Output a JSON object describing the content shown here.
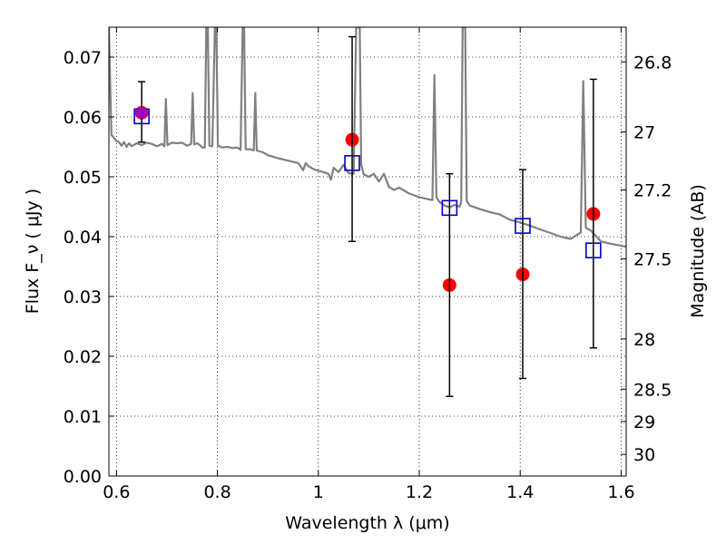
{
  "chart_data": {
    "type": "scatter",
    "xlabel": "Wavelength  λ (μm)",
    "ylabel": "Flux  F_ν  ( μJy )",
    "y2label": "Magnitude (AB)",
    "xlim": [
      0.585,
      1.61
    ],
    "ylim": [
      0.0,
      0.075
    ],
    "grid": true,
    "x_ticks": [
      0.6,
      0.8,
      1.0,
      1.2,
      1.4,
      1.6
    ],
    "x_tick_labels": [
      "0.6",
      "0.8",
      "1",
      "1.2",
      "1.4",
      "1.6"
    ],
    "y_ticks": [
      0.0,
      0.01,
      0.02,
      0.03,
      0.04,
      0.05,
      0.06,
      0.07
    ],
    "y_tick_labels": [
      "0.00",
      "0.01",
      "0.02",
      "0.03",
      "0.04",
      "0.05",
      "0.06",
      "0.07"
    ],
    "y2_ticks": [
      {
        "label": "26.8",
        "flux": 0.0692
      },
      {
        "label": "27",
        "flux": 0.0575
      },
      {
        "label": "27.2",
        "flux": 0.0478
      },
      {
        "label": "27.5",
        "flux": 0.0363
      },
      {
        "label": "28",
        "flux": 0.0229
      },
      {
        "label": "28.5",
        "flux": 0.0145
      },
      {
        "label": "29",
        "flux": 0.0091
      },
      {
        "label": "30",
        "flux": 0.0036
      }
    ],
    "series": [
      {
        "kind": "line",
        "color": "#808080",
        "points": [
          [
            0.585,
            0.075
          ],
          [
            0.59,
            0.057
          ],
          [
            0.595,
            0.0565
          ],
          [
            0.6,
            0.056
          ],
          [
            0.605,
            0.0558
          ],
          [
            0.61,
            0.0552
          ],
          [
            0.615,
            0.0558
          ],
          [
            0.62,
            0.055
          ],
          [
            0.625,
            0.0556
          ],
          [
            0.63,
            0.0551
          ],
          [
            0.64,
            0.0556
          ],
          [
            0.65,
            0.0553
          ],
          [
            0.66,
            0.0557
          ],
          [
            0.67,
            0.0555
          ],
          [
            0.68,
            0.0551
          ],
          [
            0.69,
            0.0555
          ],
          [
            0.695,
            0.0551
          ],
          [
            0.698,
            0.063
          ],
          [
            0.701,
            0.0553
          ],
          [
            0.71,
            0.0557
          ],
          [
            0.72,
            0.0556
          ],
          [
            0.73,
            0.0557
          ],
          [
            0.74,
            0.0552
          ],
          [
            0.748,
            0.0555
          ],
          [
            0.751,
            0.064
          ],
          [
            0.754,
            0.0554
          ],
          [
            0.76,
            0.0556
          ],
          [
            0.765,
            0.0553
          ],
          [
            0.77,
            0.0549
          ],
          [
            0.775,
            0.0549
          ],
          [
            0.778,
            0.075
          ],
          [
            0.781,
            0.075
          ],
          [
            0.784,
            0.0552
          ],
          [
            0.79,
            0.0551
          ],
          [
            0.795,
            0.075
          ],
          [
            0.798,
            0.075
          ],
          [
            0.801,
            0.0552
          ],
          [
            0.81,
            0.0549
          ],
          [
            0.82,
            0.055
          ],
          [
            0.83,
            0.0548
          ],
          [
            0.84,
            0.0549
          ],
          [
            0.846,
            0.0545
          ],
          [
            0.85,
            0.075
          ],
          [
            0.853,
            0.075
          ],
          [
            0.856,
            0.0546
          ],
          [
            0.865,
            0.0546
          ],
          [
            0.872,
            0.0544
          ],
          [
            0.875,
            0.064
          ],
          [
            0.878,
            0.0544
          ],
          [
            0.89,
            0.0541
          ],
          [
            0.9,
            0.0536
          ],
          [
            0.92,
            0.0531
          ],
          [
            0.94,
            0.0527
          ],
          [
            0.96,
            0.0523
          ],
          [
            0.97,
            0.0511
          ],
          [
            0.975,
            0.0523
          ],
          [
            0.98,
            0.0518
          ],
          [
            0.99,
            0.0513
          ],
          [
            1.0,
            0.051
          ],
          [
            1.01,
            0.0508
          ],
          [
            1.02,
            0.0505
          ],
          [
            1.025,
            0.0495
          ],
          [
            1.03,
            0.0515
          ],
          [
            1.04,
            0.0508
          ],
          [
            1.05,
            0.052
          ],
          [
            1.06,
            0.0506
          ],
          [
            1.07,
            0.0505
          ],
          [
            1.075,
            0.075
          ],
          [
            1.082,
            0.075
          ],
          [
            1.085,
            0.052
          ],
          [
            1.09,
            0.0504
          ],
          [
            1.1,
            0.05
          ],
          [
            1.11,
            0.0505
          ],
          [
            1.12,
            0.0492
          ],
          [
            1.13,
            0.0505
          ],
          [
            1.14,
            0.0483
          ],
          [
            1.15,
            0.0478
          ],
          [
            1.16,
            0.0482
          ],
          [
            1.18,
            0.0472
          ],
          [
            1.2,
            0.0466
          ],
          [
            1.22,
            0.0462
          ],
          [
            1.226,
            0.0461
          ],
          [
            1.23,
            0.067
          ],
          [
            1.234,
            0.0466
          ],
          [
            1.24,
            0.0458
          ],
          [
            1.25,
            0.0452
          ],
          [
            1.26,
            0.0449
          ],
          [
            1.27,
            0.0453
          ],
          [
            1.28,
            0.045
          ],
          [
            1.283,
            0.0458
          ],
          [
            1.286,
            0.075
          ],
          [
            1.291,
            0.075
          ],
          [
            1.294,
            0.046
          ],
          [
            1.3,
            0.0452
          ],
          [
            1.32,
            0.0446
          ],
          [
            1.34,
            0.0441
          ],
          [
            1.36,
            0.0437
          ],
          [
            1.38,
            0.0428
          ],
          [
            1.4,
            0.0424
          ],
          [
            1.42,
            0.0418
          ],
          [
            1.44,
            0.0412
          ],
          [
            1.46,
            0.0406
          ],
          [
            1.48,
            0.04
          ],
          [
            1.5,
            0.0396
          ],
          [
            1.52,
            0.0407
          ],
          [
            1.525,
            0.066
          ],
          [
            1.53,
            0.0415
          ],
          [
            1.54,
            0.041
          ],
          [
            1.55,
            0.0401
          ],
          [
            1.56,
            0.0392
          ],
          [
            1.58,
            0.0388
          ],
          [
            1.6,
            0.0385
          ],
          [
            1.61,
            0.0383
          ]
        ]
      },
      {
        "kind": "points",
        "marker": "circle",
        "color": "#ff0000",
        "points": [
          {
            "x": 0.65,
            "y": 0.0607
          },
          {
            "x": 1.067,
            "y": 0.0562
          },
          {
            "x": 1.26,
            "y": 0.0319
          },
          {
            "x": 1.405,
            "y": 0.0337
          },
          {
            "x": 1.545,
            "y": 0.0438
          }
        ]
      },
      {
        "kind": "points",
        "marker": "open-square",
        "color": "#0000cc",
        "points": [
          {
            "x": 0.65,
            "y": 0.0601
          },
          {
            "x": 1.067,
            "y": 0.0523
          },
          {
            "x": 1.26,
            "y": 0.0448
          },
          {
            "x": 1.405,
            "y": 0.0418
          },
          {
            "x": 1.545,
            "y": 0.0377
          }
        ]
      },
      {
        "kind": "errorbars",
        "color": "#000000",
        "bars": [
          {
            "x": 0.65,
            "low": 0.0558,
            "high": 0.0659
          },
          {
            "x": 1.067,
            "low": 0.0392,
            "high": 0.0734
          },
          {
            "x": 1.26,
            "low": 0.0133,
            "high": 0.0505
          },
          {
            "x": 1.405,
            "low": 0.0163,
            "high": 0.0512
          },
          {
            "x": 1.545,
            "low": 0.0214,
            "high": 0.0663
          }
        ]
      }
    ]
  }
}
